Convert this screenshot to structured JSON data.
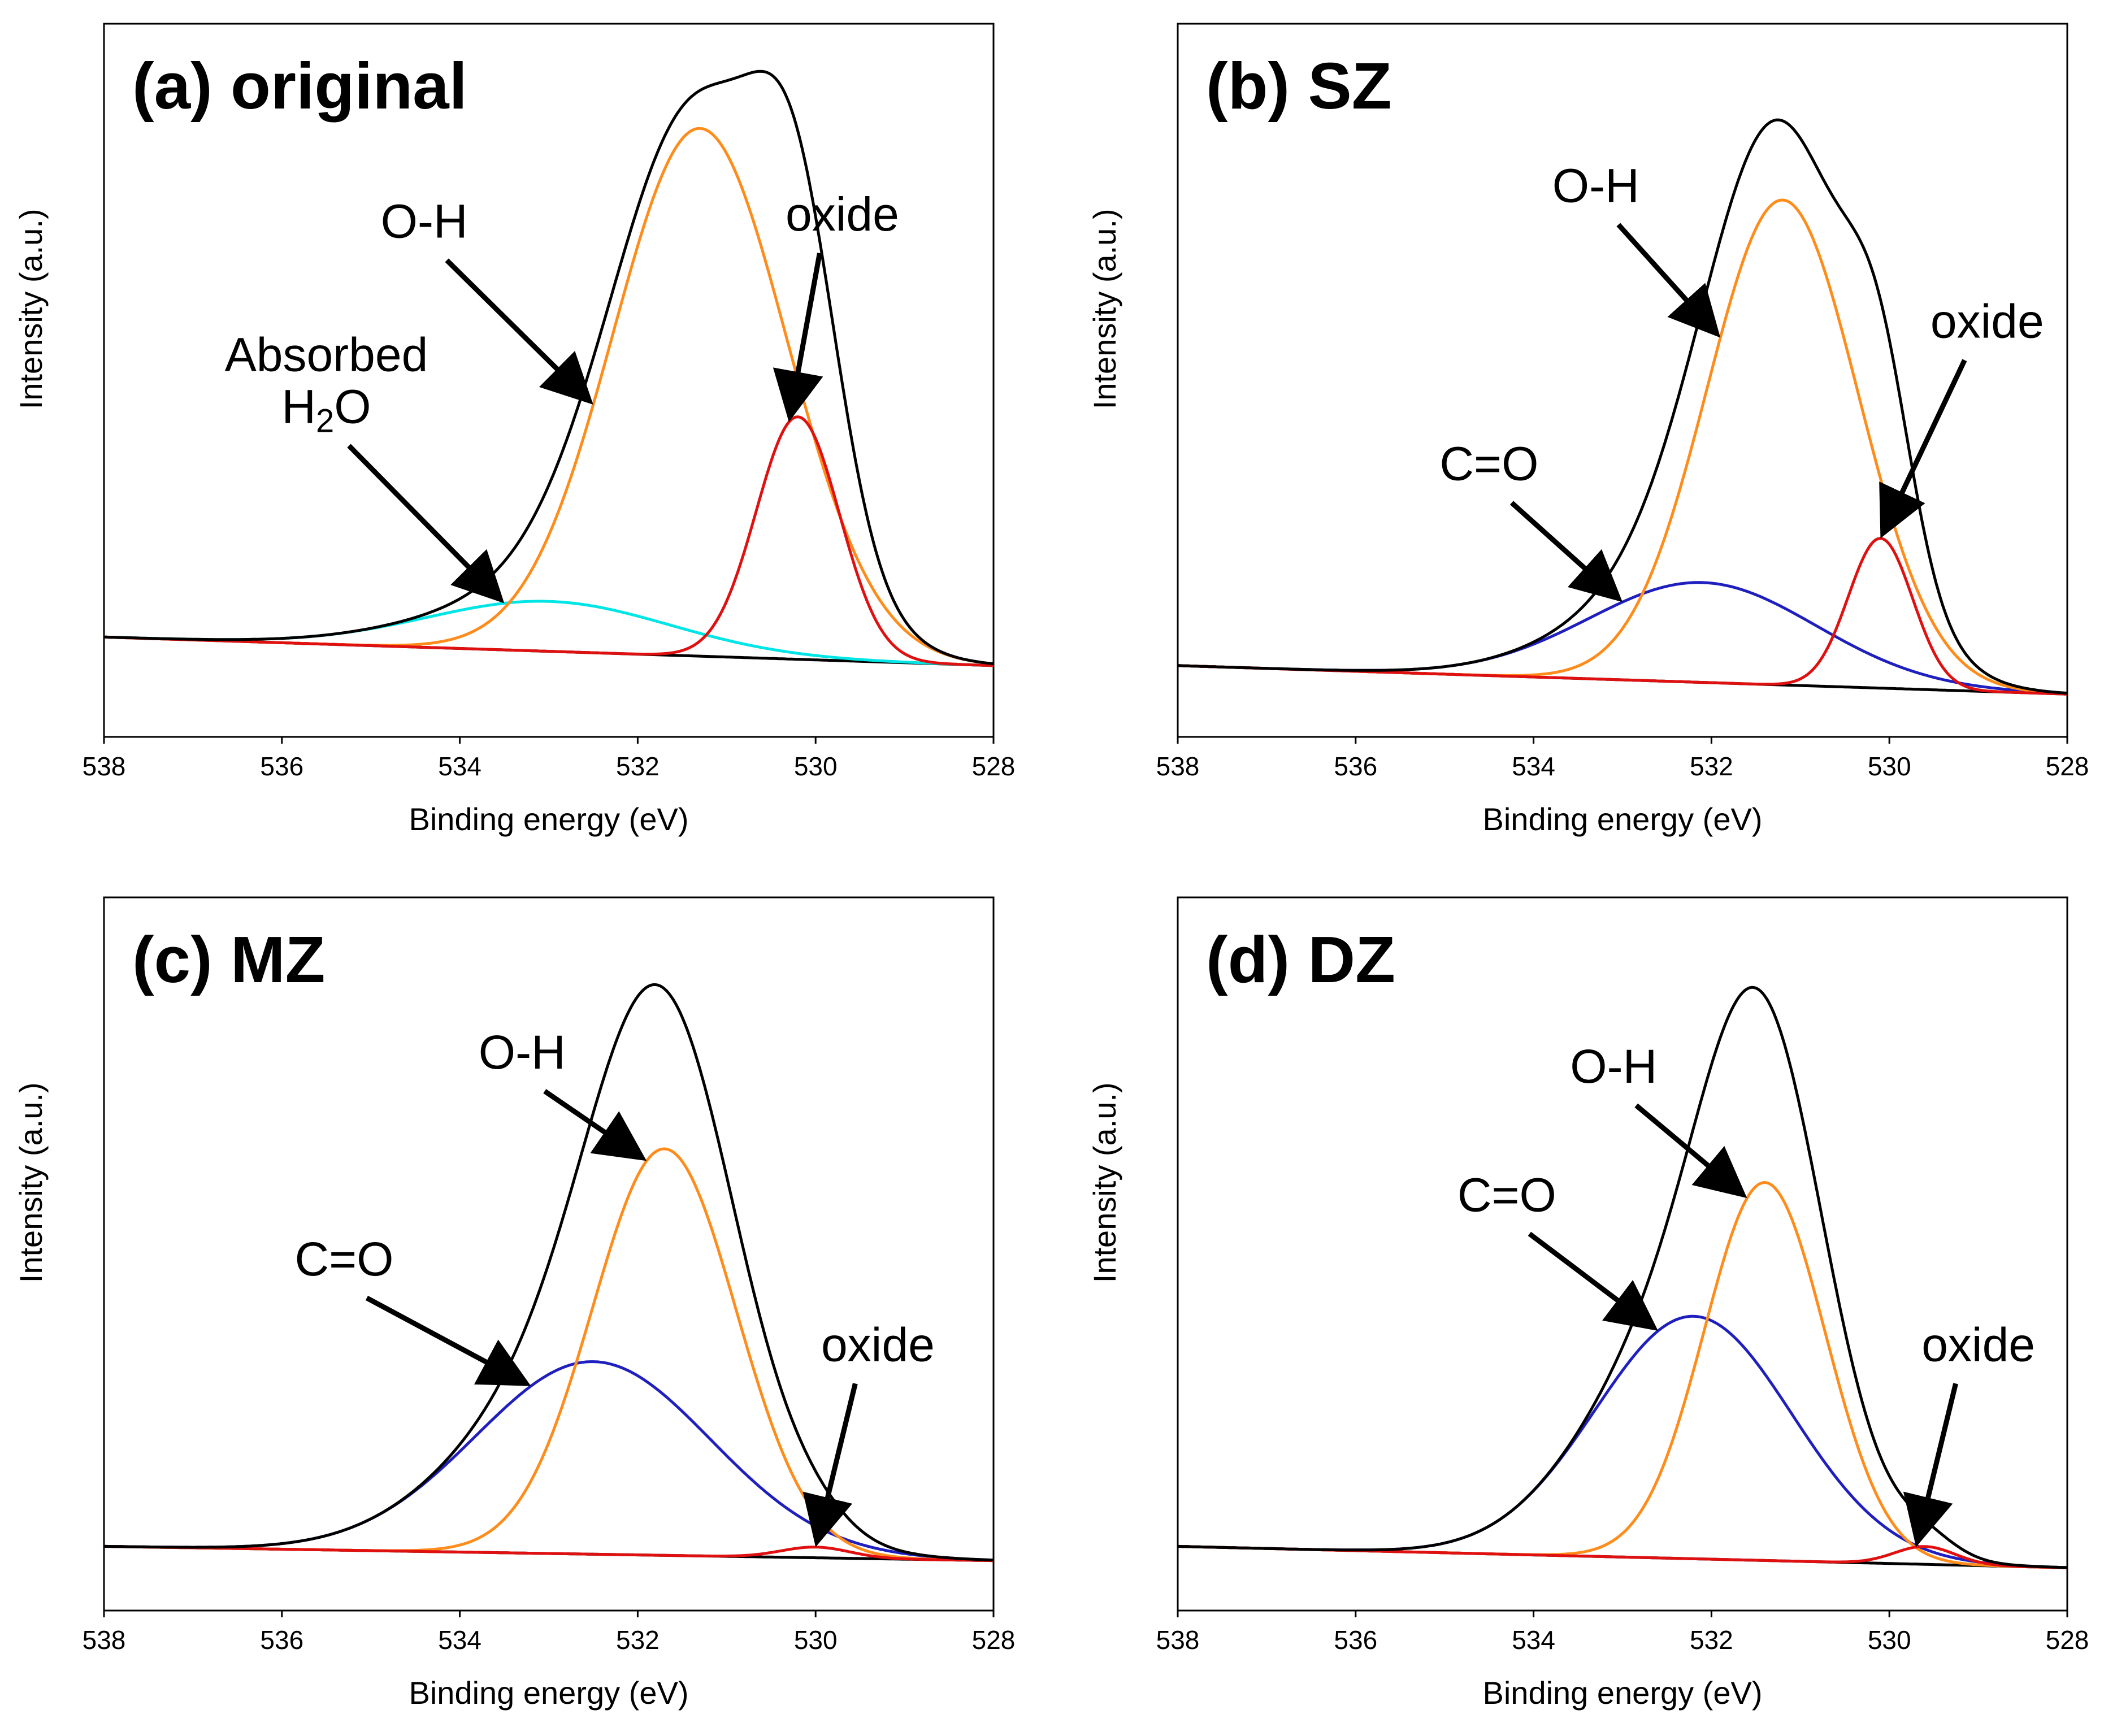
{
  "chart_data": [
    {
      "type": "line",
      "id": "a",
      "title": "(a) original",
      "xlabel": "Binding energy (eV)",
      "ylabel": "Intensity (a.u.)",
      "xlim": [
        538,
        528
      ],
      "x_ticks": [
        "538",
        "536",
        "534",
        "532",
        "530",
        "528"
      ],
      "ylim": [
        0,
        100
      ],
      "baseline": {
        "start": 14,
        "end": 10
      },
      "series": [
        {
          "name": "Envelope",
          "color": "#000000",
          "role": "envelope"
        },
        {
          "name": "Absorbed H2O",
          "color": "#00e5e5",
          "center": 533.0,
          "fwhm": 3.2,
          "height": 7
        },
        {
          "name": "O-H",
          "color": "#ff8c1a",
          "center": 531.3,
          "fwhm": 2.3,
          "height": 74
        },
        {
          "name": "oxide",
          "color": "#e01010",
          "center": 530.2,
          "fwhm": 1.1,
          "height": 34
        }
      ],
      "annotations": [
        {
          "lines": [
            "O-H"
          ],
          "target_x": 532.5,
          "target_series": 2
        },
        {
          "lines": [
            "oxide"
          ],
          "target_x": 530.3,
          "target_series": 3
        },
        {
          "lines": [
            "Absorbed",
            "H2O"
          ],
          "target_x": 533.5,
          "target_series": 1
        }
      ]
    },
    {
      "type": "line",
      "id": "b",
      "title": "(b) SZ",
      "xlabel": "Binding energy (eV)",
      "ylabel": "Intensity (a.u.)",
      "xlim": [
        538,
        528
      ],
      "x_ticks": [
        "538",
        "536",
        "534",
        "532",
        "530",
        "528"
      ],
      "ylim": [
        0,
        100
      ],
      "baseline": {
        "start": 10,
        "end": 6
      },
      "series": [
        {
          "name": "Envelope",
          "color": "#000000",
          "role": "envelope"
        },
        {
          "name": "C=O",
          "color": "#1f1fbf",
          "center": 532.1,
          "fwhm": 3.0,
          "height": 14
        },
        {
          "name": "O-H",
          "color": "#ff8c1a",
          "center": 531.2,
          "fwhm": 2.0,
          "height": 68
        },
        {
          "name": "oxide",
          "color": "#e01010",
          "center": 530.1,
          "fwhm": 0.85,
          "height": 21
        }
      ],
      "annotations": [
        {
          "lines": [
            "O-H"
          ],
          "target_x": 531.9,
          "target_series": 2
        },
        {
          "lines": [
            "C=O"
          ],
          "target_x": 533.0,
          "target_series": 1
        },
        {
          "lines": [
            "oxide"
          ],
          "target_x": 530.1,
          "target_series": 3
        }
      ]
    },
    {
      "type": "line",
      "id": "c",
      "title": "(c) MZ",
      "xlabel": "Binding energy (eV)",
      "ylabel": "Intensity (a.u.)",
      "xlim": [
        538,
        528
      ],
      "x_ticks": [
        "538",
        "536",
        "534",
        "532",
        "530",
        "528"
      ],
      "ylim": [
        0,
        100
      ],
      "baseline": {
        "start": 9,
        "end": 7
      },
      "series": [
        {
          "name": "Envelope",
          "color": "#000000",
          "role": "envelope"
        },
        {
          "name": "C=O",
          "color": "#1f1fbf",
          "center": 532.5,
          "fwhm": 3.1,
          "height": 27
        },
        {
          "name": "O-H",
          "color": "#ff8c1a",
          "center": 531.7,
          "fwhm": 1.9,
          "height": 57
        },
        {
          "name": "oxide",
          "color": "#e01010",
          "center": 530.0,
          "fwhm": 0.9,
          "height": 1.5
        }
      ],
      "annotations": [
        {
          "lines": [
            "O-H"
          ],
          "target_x": 531.9,
          "target_series": 2
        },
        {
          "lines": [
            "C=O"
          ],
          "target_x": 533.2,
          "target_series": 1
        },
        {
          "lines": [
            "oxide"
          ],
          "target_x": 530.0,
          "target_series": 3
        }
      ]
    },
    {
      "type": "line",
      "id": "d",
      "title": "(d) DZ",
      "xlabel": "Binding energy (eV)",
      "ylabel": "Intensity (a.u.)",
      "xlim": [
        538,
        528
      ],
      "x_ticks": [
        "538",
        "536",
        "534",
        "532",
        "530",
        "528"
      ],
      "ylim": [
        0,
        100
      ],
      "baseline": {
        "start": 9,
        "end": 6
      },
      "series": [
        {
          "name": "Envelope",
          "color": "#000000",
          "role": "envelope"
        },
        {
          "name": "C=O",
          "color": "#1f1fbf",
          "center": 532.2,
          "fwhm": 2.6,
          "height": 34
        },
        {
          "name": "O-H",
          "color": "#ff8c1a",
          "center": 531.4,
          "fwhm": 1.6,
          "height": 53
        },
        {
          "name": "oxide",
          "color": "#e01010",
          "center": 529.6,
          "fwhm": 0.8,
          "height": 2.5
        }
      ],
      "annotations": [
        {
          "lines": [
            "O-H"
          ],
          "target_x": 531.6,
          "target_series": 2
        },
        {
          "lines": [
            "C=O"
          ],
          "target_x": 532.6,
          "target_series": 1
        },
        {
          "lines": [
            "oxide"
          ],
          "target_x": 529.7,
          "target_series": 3
        }
      ]
    }
  ]
}
